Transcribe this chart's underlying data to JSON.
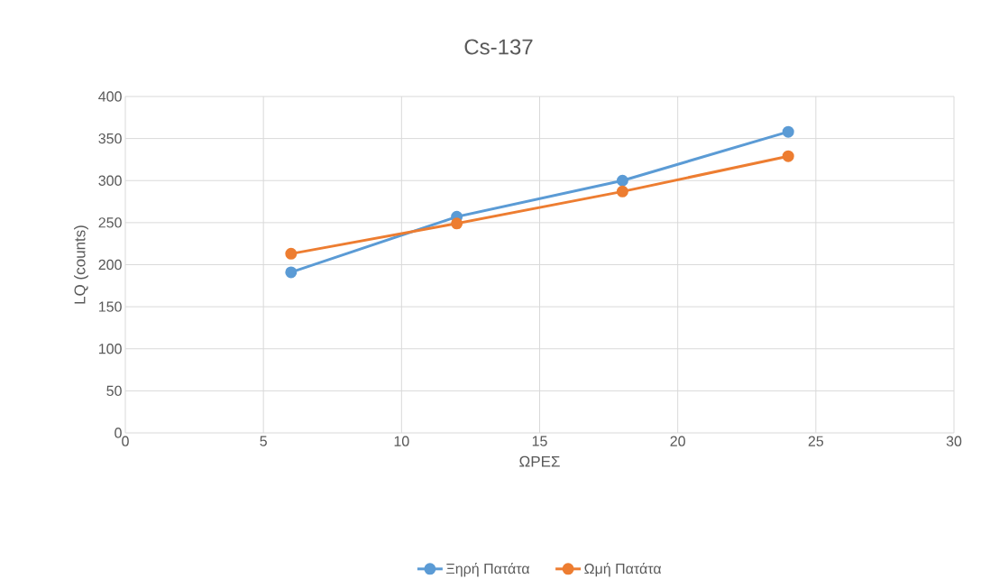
{
  "chart_data": {
    "type": "line",
    "title": "Cs-137",
    "xlabel": "ΩΡΕΣ",
    "ylabel": "LQ (counts)",
    "x": [
      6,
      12,
      18,
      24
    ],
    "series": [
      {
        "name": "Ξηρή Πατάτα",
        "color": "#5b9bd5",
        "values": [
          191,
          257,
          300,
          358
        ]
      },
      {
        "name": "Ωμή Πατάτα",
        "color": "#ed7d31",
        "values": [
          213,
          249,
          287,
          329
        ]
      }
    ],
    "xlim": [
      0,
      30
    ],
    "xticks": [
      0,
      5,
      10,
      15,
      20,
      25,
      30
    ],
    "ylim": [
      0,
      400
    ],
    "yticks": [
      0,
      50,
      100,
      150,
      200,
      250,
      300,
      350,
      400
    ],
    "grid": true,
    "legend": "bottom",
    "marker": "circle",
    "line_style": "solid"
  }
}
